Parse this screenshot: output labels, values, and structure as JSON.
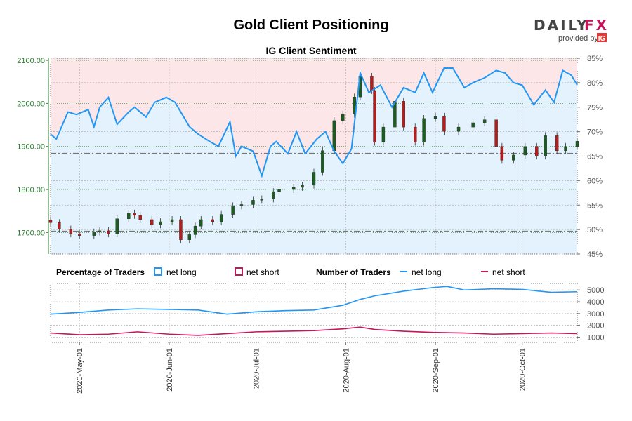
{
  "title": "Gold Client Positioning",
  "brand": {
    "name_left": "DAILY",
    "name_right": "FX",
    "provided_by": "provided by",
    "ig_logo": "IG"
  },
  "colors": {
    "long": "#2196f3",
    "short": "#c2185b",
    "up": "#1b5e20",
    "down": "#b71c1c",
    "axis_left": "#2e7d32",
    "shade_long": "#e3f2fd",
    "shade_short": "#fde6e8"
  },
  "legend": {
    "pct_heading": "Percentage of Traders",
    "pct_long": "net long",
    "pct_short": "net short",
    "num_heading": "Number of Traders",
    "num_long": "net long",
    "num_short": "net short"
  },
  "chart_data": [
    {
      "type": "candlestick",
      "title": "IG Client Sentiment",
      "y_left_ticks": [
        "1700.00",
        "1800.00",
        "1900.00",
        "2000.00",
        "2100.00"
      ],
      "y_left_range": [
        1650,
        2105
      ],
      "y_right_ticks": [
        "45%",
        "50%",
        "55%",
        "60%",
        "65%",
        "70%",
        "75%",
        "80%",
        "85%"
      ],
      "y_right_range": [
        45,
        85
      ],
      "x_ticks": [
        "2020-May-01",
        "2020-Jun-01",
        "2020-Jul-01",
        "2020-Aug-01",
        "2020-Sep-01",
        "2020-Oct-01"
      ],
      "x_range": [
        "2020-04-21",
        "2020-10-20"
      ],
      "reference_lines": [
        1884,
        1703
      ],
      "price_close": [
        [
          "2020-04-21",
          1723
        ],
        [
          "2020-04-24",
          1708
        ],
        [
          "2020-04-28",
          1697
        ],
        [
          "2020-05-01",
          1693
        ],
        [
          "2020-05-06",
          1701
        ],
        [
          "2020-05-08",
          1704
        ],
        [
          "2020-05-11",
          1697
        ],
        [
          "2020-05-14",
          1732
        ],
        [
          "2020-05-18",
          1745
        ],
        [
          "2020-05-20",
          1740
        ],
        [
          "2020-05-22",
          1730
        ],
        [
          "2020-05-26",
          1718
        ],
        [
          "2020-05-29",
          1725
        ],
        [
          "2020-06-02",
          1730
        ],
        [
          "2020-06-05",
          1683
        ],
        [
          "2020-06-08",
          1695
        ],
        [
          "2020-06-10",
          1715
        ],
        [
          "2020-06-12",
          1730
        ],
        [
          "2020-06-16",
          1725
        ],
        [
          "2020-06-19",
          1742
        ],
        [
          "2020-06-23",
          1762
        ],
        [
          "2020-06-26",
          1765
        ],
        [
          "2020-06-30",
          1775
        ],
        [
          "2020-07-03",
          1778
        ],
        [
          "2020-07-07",
          1795
        ],
        [
          "2020-07-09",
          1800
        ],
        [
          "2020-07-14",
          1805
        ],
        [
          "2020-07-17",
          1810
        ],
        [
          "2020-07-21",
          1840
        ],
        [
          "2020-07-24",
          1890
        ],
        [
          "2020-07-28",
          1960
        ],
        [
          "2020-07-31",
          1975
        ],
        [
          "2020-08-04",
          2015
        ],
        [
          "2020-08-06",
          2063
        ],
        [
          "2020-08-10",
          2030
        ],
        [
          "2020-08-11",
          1910
        ],
        [
          "2020-08-14",
          1945
        ],
        [
          "2020-08-18",
          2005
        ],
        [
          "2020-08-21",
          1945
        ],
        [
          "2020-08-25",
          1910
        ],
        [
          "2020-08-28",
          1965
        ],
        [
          "2020-09-01",
          1970
        ],
        [
          "2020-09-04",
          1935
        ],
        [
          "2020-09-09",
          1945
        ],
        [
          "2020-09-14",
          1955
        ],
        [
          "2020-09-18",
          1962
        ],
        [
          "2020-09-22",
          1900
        ],
        [
          "2020-09-24",
          1868
        ],
        [
          "2020-09-28",
          1880
        ],
        [
          "2020-10-02",
          1900
        ],
        [
          "2020-10-06",
          1878
        ],
        [
          "2020-10-09",
          1925
        ],
        [
          "2020-10-13",
          1890
        ],
        [
          "2020-10-16",
          1900
        ],
        [
          "2020-10-20",
          1912
        ]
      ],
      "series": [
        {
          "name": "net long",
          "axis": "right",
          "values": [
            [
              "2020-04-21",
              69.5
            ],
            [
              "2020-04-23",
              68.5
            ],
            [
              "2020-04-27",
              74
            ],
            [
              "2020-04-30",
              73.5
            ],
            [
              "2020-05-04",
              74.5
            ],
            [
              "2020-05-06",
              71
            ],
            [
              "2020-05-08",
              75
            ],
            [
              "2020-05-11",
              77
            ],
            [
              "2020-05-14",
              71.5
            ],
            [
              "2020-05-18",
              74
            ],
            [
              "2020-05-20",
              75
            ],
            [
              "2020-05-24",
              73
            ],
            [
              "2020-05-27",
              76
            ],
            [
              "2020-05-31",
              77
            ],
            [
              "2020-06-03",
              76
            ],
            [
              "2020-06-08",
              71
            ],
            [
              "2020-06-11",
              69.5
            ],
            [
              "2020-06-15",
              68
            ],
            [
              "2020-06-18",
              67
            ],
            [
              "2020-06-22",
              72
            ],
            [
              "2020-06-24",
              65
            ],
            [
              "2020-06-26",
              67
            ],
            [
              "2020-06-30",
              66
            ],
            [
              "2020-07-03",
              61
            ],
            [
              "2020-07-06",
              67
            ],
            [
              "2020-07-08",
              68
            ],
            [
              "2020-07-12",
              65.5
            ],
            [
              "2020-07-15",
              70
            ],
            [
              "2020-07-18",
              65.5
            ],
            [
              "2020-07-22",
              68.5
            ],
            [
              "2020-07-25",
              70
            ],
            [
              "2020-07-28",
              66
            ],
            [
              "2020-07-31",
              63.5
            ],
            [
              "2020-08-03",
              66.5
            ],
            [
              "2020-08-06",
              82
            ],
            [
              "2020-08-09",
              78
            ],
            [
              "2020-08-13",
              79.5
            ],
            [
              "2020-08-17",
              75
            ],
            [
              "2020-08-21",
              79
            ],
            [
              "2020-08-25",
              78
            ],
            [
              "2020-08-28",
              82
            ],
            [
              "2020-08-31",
              78
            ],
            [
              "2020-09-04",
              83
            ],
            [
              "2020-09-07",
              83
            ],
            [
              "2020-09-11",
              79
            ],
            [
              "2020-09-14",
              80
            ],
            [
              "2020-09-18",
              81
            ],
            [
              "2020-09-22",
              82.5
            ],
            [
              "2020-09-25",
              82
            ],
            [
              "2020-09-28",
              80
            ],
            [
              "2020-10-01",
              79.5
            ],
            [
              "2020-10-05",
              75.5
            ],
            [
              "2020-10-09",
              78.5
            ],
            [
              "2020-10-12",
              76
            ],
            [
              "2020-10-15",
              82.5
            ],
            [
              "2020-10-18",
              81.5
            ],
            [
              "2020-10-20",
              79.5
            ]
          ]
        }
      ]
    },
    {
      "type": "line",
      "y_ticks": [
        "1000",
        "2000",
        "3000",
        "4000",
        "5000"
      ],
      "y_range": [
        550,
        5550
      ],
      "x_range": [
        "2020-04-21",
        "2020-10-20"
      ],
      "series": [
        {
          "name": "net long",
          "values": [
            [
              "2020-04-21",
              2950
            ],
            [
              "2020-05-01",
              3100
            ],
            [
              "2020-05-11",
              3300
            ],
            [
              "2020-05-21",
              3400
            ],
            [
              "2020-06-01",
              3350
            ],
            [
              "2020-06-11",
              3300
            ],
            [
              "2020-06-21",
              2950
            ],
            [
              "2020-07-01",
              3150
            ],
            [
              "2020-07-11",
              3250
            ],
            [
              "2020-07-21",
              3300
            ],
            [
              "2020-07-31",
              3700
            ],
            [
              "2020-08-06",
              4200
            ],
            [
              "2020-08-11",
              4500
            ],
            [
              "2020-08-21",
              4900
            ],
            [
              "2020-08-31",
              5200
            ],
            [
              "2020-09-05",
              5300
            ],
            [
              "2020-09-11",
              5000
            ],
            [
              "2020-09-21",
              5100
            ],
            [
              "2020-10-01",
              5050
            ],
            [
              "2020-10-11",
              4800
            ],
            [
              "2020-10-20",
              4850
            ]
          ]
        },
        {
          "name": "net short",
          "values": [
            [
              "2020-04-21",
              1350
            ],
            [
              "2020-05-01",
              1200
            ],
            [
              "2020-05-11",
              1250
            ],
            [
              "2020-05-21",
              1450
            ],
            [
              "2020-06-01",
              1250
            ],
            [
              "2020-06-11",
              1150
            ],
            [
              "2020-06-21",
              1300
            ],
            [
              "2020-07-01",
              1450
            ],
            [
              "2020-07-11",
              1500
            ],
            [
              "2020-07-21",
              1550
            ],
            [
              "2020-07-31",
              1700
            ],
            [
              "2020-08-06",
              1850
            ],
            [
              "2020-08-11",
              1650
            ],
            [
              "2020-08-21",
              1500
            ],
            [
              "2020-08-31",
              1400
            ],
            [
              "2020-09-11",
              1350
            ],
            [
              "2020-09-21",
              1250
            ],
            [
              "2020-10-01",
              1300
            ],
            [
              "2020-10-11",
              1350
            ],
            [
              "2020-10-20",
              1300
            ]
          ]
        }
      ]
    }
  ]
}
